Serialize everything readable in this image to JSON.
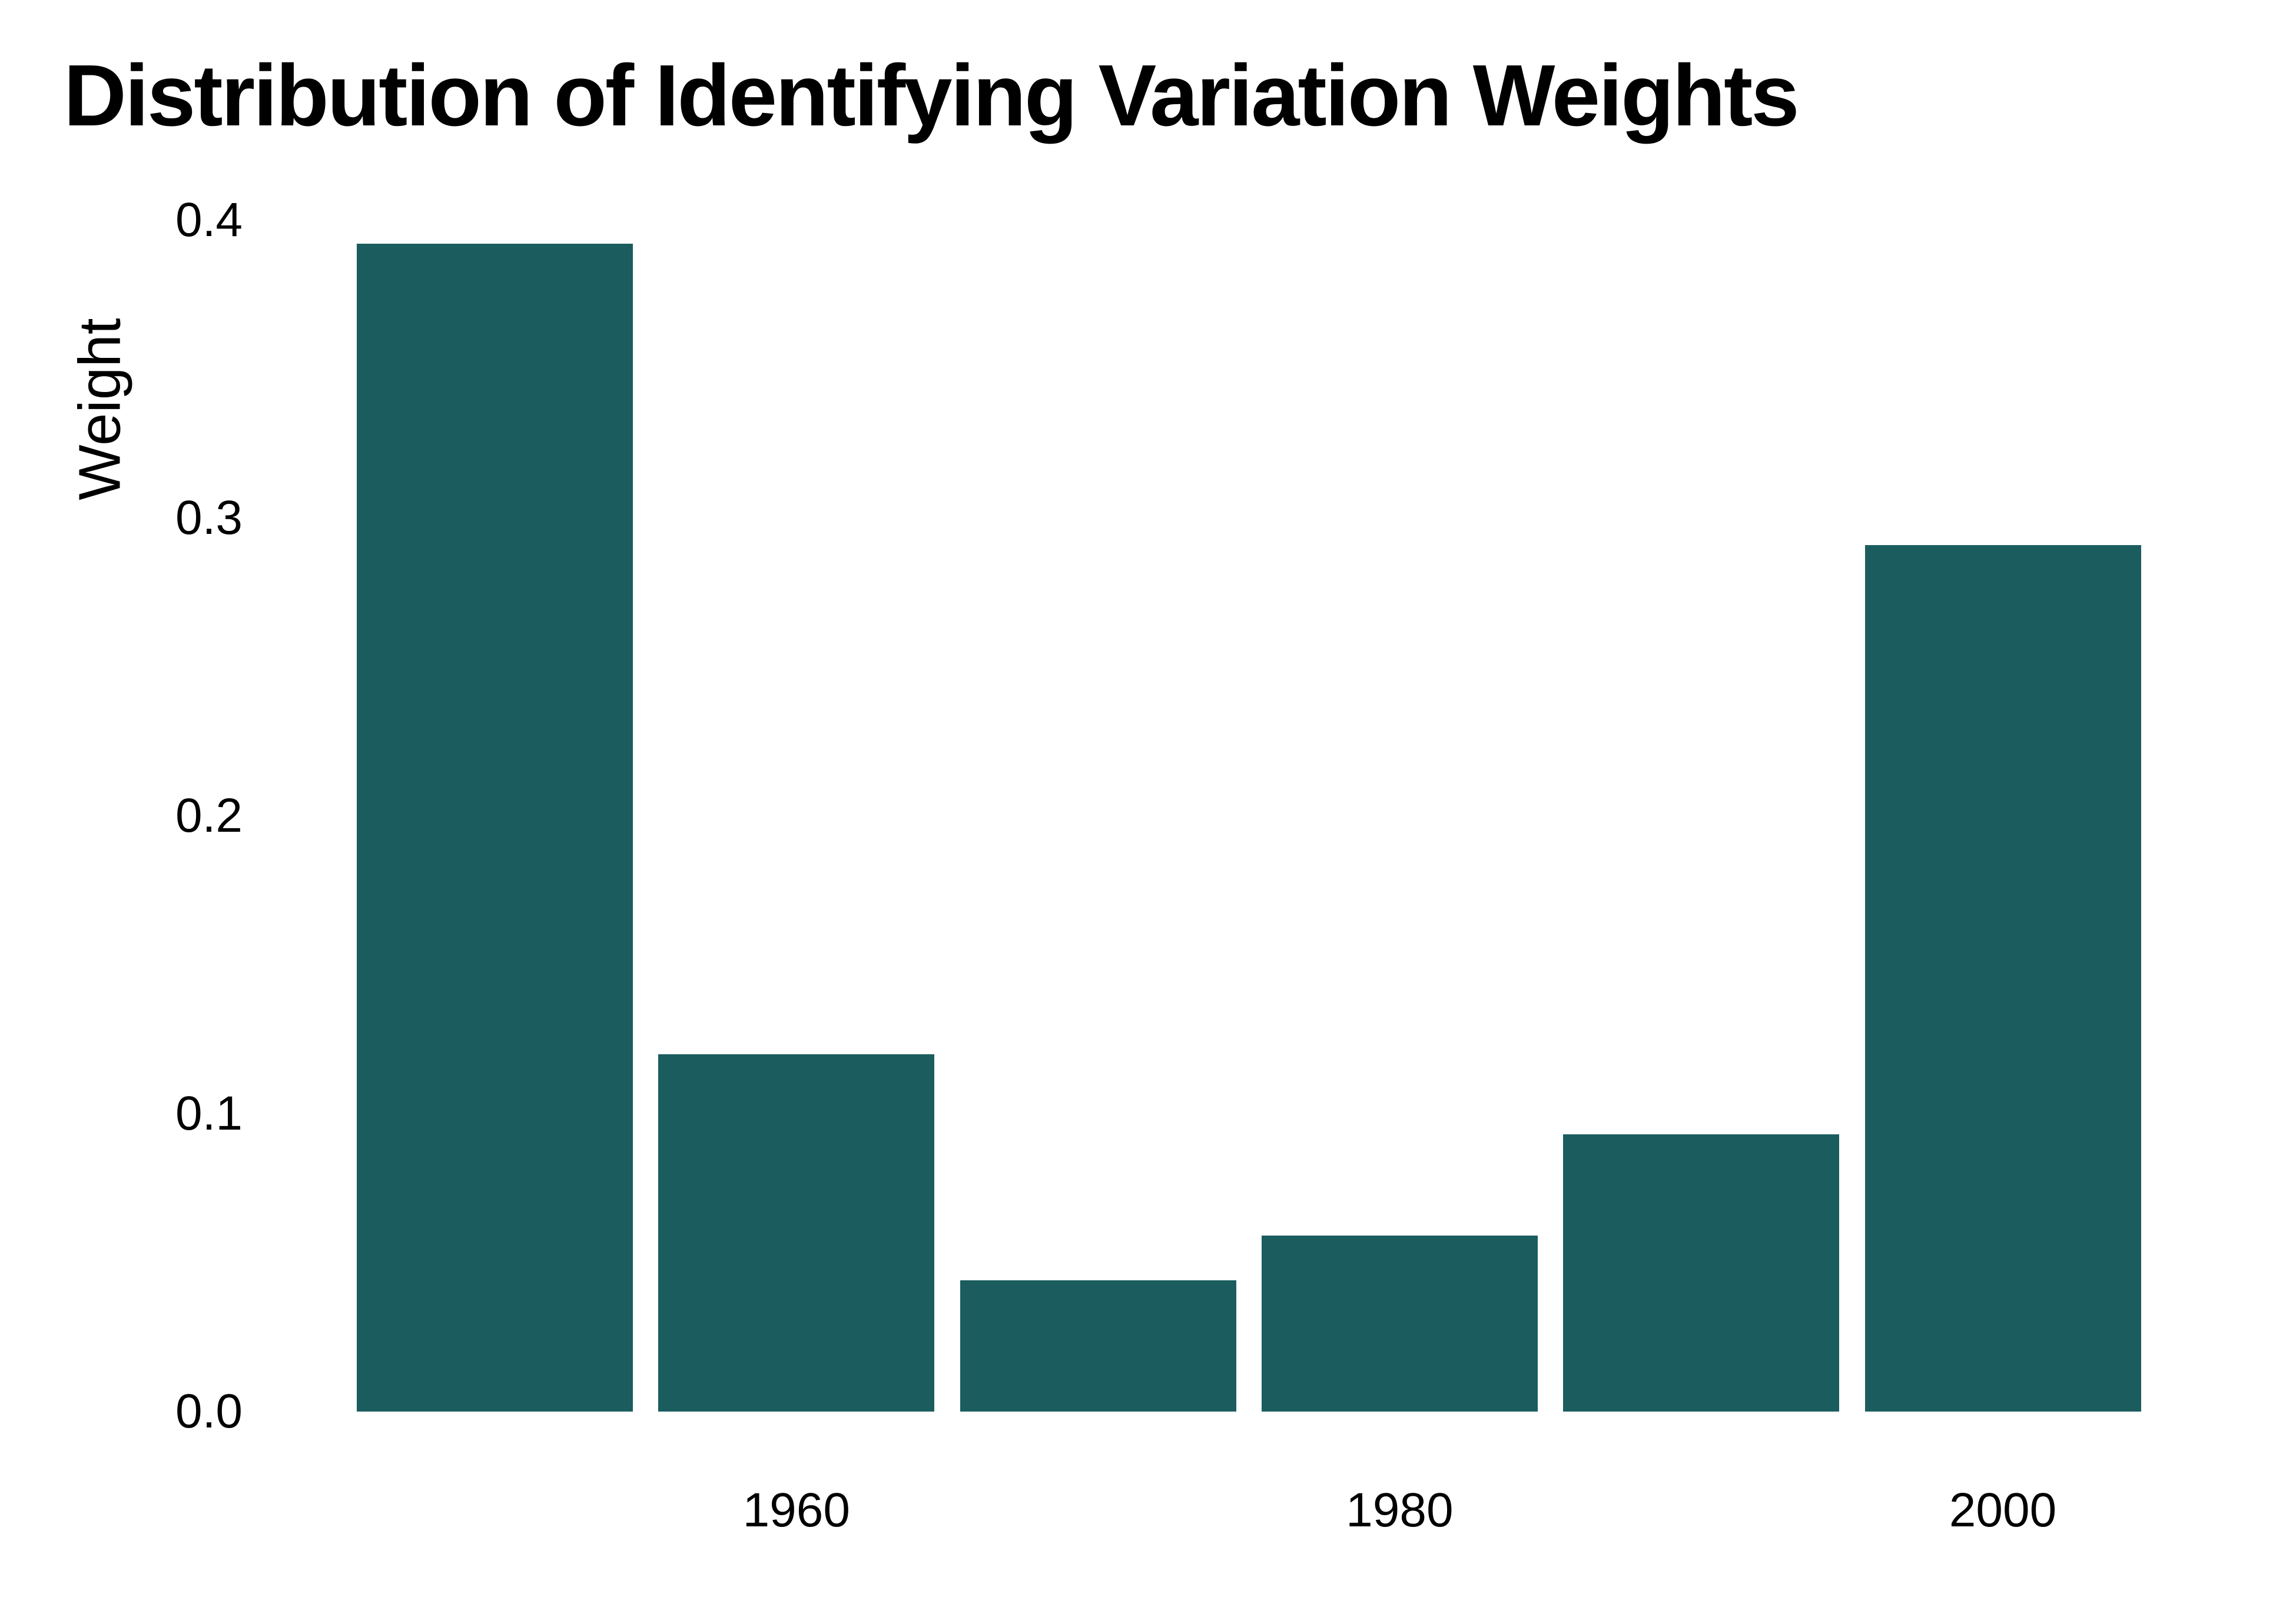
{
  "chart_data": {
    "type": "bar",
    "title": "Distribution of Identifying Variation Weights",
    "xlabel": "",
    "ylabel": "Weight",
    "x": [
      1950,
      1960,
      1970,
      1980,
      1990,
      2000
    ],
    "values": [
      0.392,
      0.12,
      0.044,
      0.059,
      0.093,
      0.291
    ],
    "x_tick_values": [
      1960,
      1980,
      2000
    ],
    "x_tick_labels": [
      "1960",
      "1980",
      "2000"
    ],
    "y_tick_values": [
      0.0,
      0.1,
      0.2,
      0.3,
      0.4
    ],
    "y_tick_labels": [
      "0.0",
      "0.1",
      "0.2",
      "0.3",
      "0.4"
    ],
    "ylim": [
      0,
      0.4
    ],
    "grid": false,
    "legend_position": "none",
    "bar_color": "#1b5d5f",
    "background_color": "#ffffff",
    "text_color": "#000000"
  }
}
